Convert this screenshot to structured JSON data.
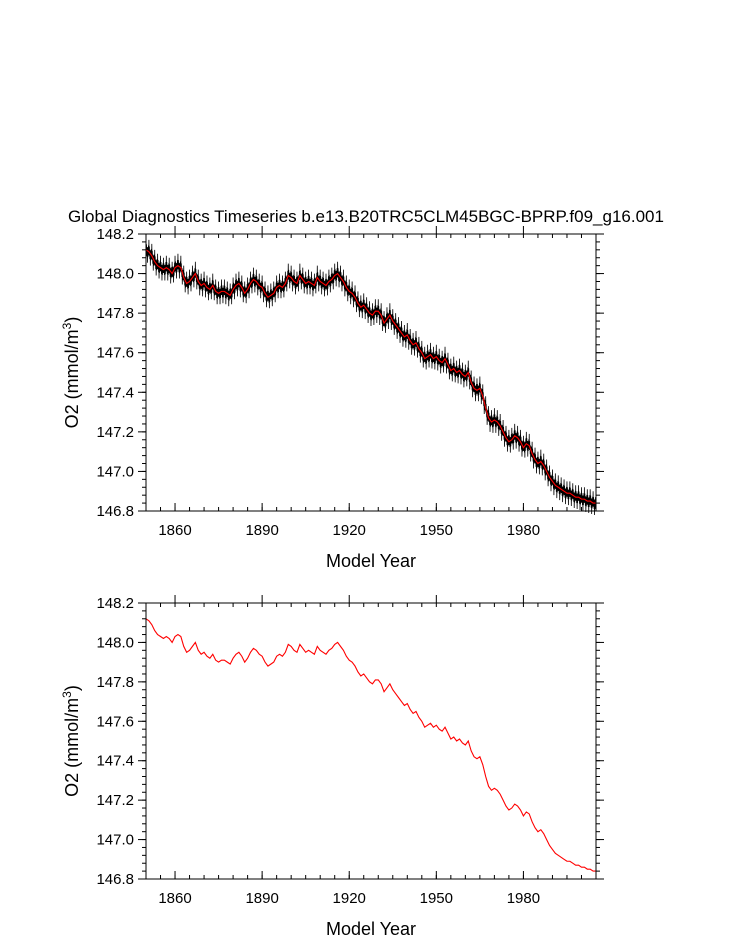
{
  "title": "Global Diagnostics Timeseries b.e13.B20TRC5CLM45BGC-BPRP.f09_g16.001",
  "colors": {
    "monthly": "#000000",
    "annual": "#ff0000",
    "axis": "#000000",
    "background": "#ffffff"
  },
  "chart_data": [
    {
      "type": "line",
      "panel": "top",
      "title": "Global Diagnostics Timeseries b.e13.B20TRC5CLM45BGC-BPRP.f09_g16.001",
      "xlabel": "Model Year",
      "ylabel": "O2 (mmol/m3)",
      "ylabel_base": "O2 (mmol/m",
      "ylabel_sup": "3",
      "ylabel_end": ")",
      "xlim": [
        1850,
        2005
      ],
      "ylim": [
        146.8,
        148.2
      ],
      "xticks": [
        1860,
        1890,
        1920,
        1950,
        1980
      ],
      "xtick_labels": [
        "1860",
        "1890",
        "1920",
        "1950",
        "1980"
      ],
      "yticks": [
        146.8,
        147.0,
        147.2,
        147.4,
        147.6,
        147.8,
        148.0,
        148.2
      ],
      "ytick_labels": [
        "146.8",
        "147.0",
        "147.2",
        "147.4",
        "147.6",
        "147.8",
        "148.0",
        "148.2"
      ],
      "series": [
        {
          "name": "monthly",
          "color": "#000000",
          "seasonal_amplitude": 0.06,
          "base": "annual"
        },
        {
          "name": "annual",
          "color": "#ff0000",
          "base": "annual"
        }
      ]
    },
    {
      "type": "line",
      "panel": "bottom",
      "xlabel": "Model Year",
      "ylabel": "O2 (mmol/m3)",
      "ylabel_base": "O2 (mmol/m",
      "ylabel_sup": "3",
      "ylabel_end": ")",
      "xlim": [
        1850,
        2005
      ],
      "ylim": [
        146.8,
        148.2
      ],
      "xticks": [
        1860,
        1890,
        1920,
        1950,
        1980
      ],
      "xtick_labels": [
        "1860",
        "1890",
        "1920",
        "1950",
        "1980"
      ],
      "yticks": [
        146.8,
        147.0,
        147.2,
        147.4,
        147.6,
        147.8,
        148.0,
        148.2
      ],
      "ytick_labels": [
        "146.8",
        "147.0",
        "147.2",
        "147.4",
        "147.6",
        "147.8",
        "148.0",
        "148.2"
      ],
      "series": [
        {
          "name": "annual",
          "color": "#ff0000",
          "base": "annual"
        }
      ]
    }
  ],
  "annual": {
    "years": [
      1850,
      1851,
      1852,
      1853,
      1854,
      1855,
      1856,
      1857,
      1858,
      1859,
      1860,
      1861,
      1862,
      1863,
      1864,
      1865,
      1866,
      1867,
      1868,
      1869,
      1870,
      1871,
      1872,
      1873,
      1874,
      1875,
      1876,
      1877,
      1878,
      1879,
      1880,
      1881,
      1882,
      1883,
      1884,
      1885,
      1886,
      1887,
      1888,
      1889,
      1890,
      1891,
      1892,
      1893,
      1894,
      1895,
      1896,
      1897,
      1898,
      1899,
      1900,
      1901,
      1902,
      1903,
      1904,
      1905,
      1906,
      1907,
      1908,
      1909,
      1910,
      1911,
      1912,
      1913,
      1914,
      1915,
      1916,
      1917,
      1918,
      1919,
      1920,
      1921,
      1922,
      1923,
      1924,
      1925,
      1926,
      1927,
      1928,
      1929,
      1930,
      1931,
      1932,
      1933,
      1934,
      1935,
      1936,
      1937,
      1938,
      1939,
      1940,
      1941,
      1942,
      1943,
      1944,
      1945,
      1946,
      1947,
      1948,
      1949,
      1950,
      1951,
      1952,
      1953,
      1954,
      1955,
      1956,
      1957,
      1958,
      1959,
      1960,
      1961,
      1962,
      1963,
      1964,
      1965,
      1966,
      1967,
      1968,
      1969,
      1970,
      1971,
      1972,
      1973,
      1974,
      1975,
      1976,
      1977,
      1978,
      1979,
      1980,
      1981,
      1982,
      1983,
      1984,
      1985,
      1986,
      1987,
      1988,
      1989,
      1990,
      1991,
      1992,
      1993,
      1994,
      1995,
      1996,
      1997,
      1998,
      1999,
      2000,
      2001,
      2002,
      2003,
      2004,
      2005
    ],
    "values": [
      148.12,
      148.11,
      148.09,
      148.06,
      148.04,
      148.03,
      148.02,
      148.03,
      148.02,
      148.0,
      148.03,
      148.04,
      148.03,
      147.98,
      147.95,
      147.96,
      147.98,
      148.0,
      147.96,
      147.94,
      147.95,
      147.93,
      147.92,
      147.94,
      147.91,
      147.9,
      147.91,
      147.91,
      147.9,
      147.89,
      147.92,
      147.94,
      147.95,
      147.93,
      147.9,
      147.92,
      147.95,
      147.97,
      147.96,
      147.94,
      147.93,
      147.9,
      147.88,
      147.89,
      147.9,
      147.93,
      147.94,
      147.93,
      147.95,
      147.99,
      147.98,
      147.96,
      147.95,
      147.99,
      147.97,
      147.95,
      147.96,
      147.95,
      147.94,
      147.98,
      147.96,
      147.95,
      147.94,
      147.96,
      147.97,
      147.99,
      148.0,
      147.98,
      147.96,
      147.93,
      147.91,
      147.9,
      147.88,
      147.85,
      147.83,
      147.84,
      147.82,
      147.8,
      147.79,
      147.81,
      147.81,
      147.79,
      147.75,
      147.77,
      147.79,
      147.76,
      147.74,
      147.72,
      147.7,
      147.68,
      147.69,
      147.66,
      147.64,
      147.65,
      147.62,
      147.6,
      147.57,
      147.58,
      147.59,
      147.57,
      147.58,
      147.56,
      147.55,
      147.57,
      147.54,
      147.51,
      147.52,
      147.5,
      147.51,
      147.49,
      147.48,
      147.5,
      147.45,
      147.42,
      147.41,
      147.42,
      147.38,
      147.32,
      147.27,
      147.25,
      147.26,
      147.25,
      147.23,
      147.2,
      147.17,
      147.15,
      147.16,
      147.18,
      147.17,
      147.15,
      147.12,
      147.14,
      147.13,
      147.09,
      147.06,
      147.04,
      147.05,
      147.03,
      147.0,
      146.97,
      146.95,
      146.93,
      146.92,
      146.91,
      146.9,
      146.89,
      146.89,
      146.88,
      146.87,
      146.87,
      146.86,
      146.86,
      146.85,
      146.85,
      146.84,
      146.84
    ]
  }
}
